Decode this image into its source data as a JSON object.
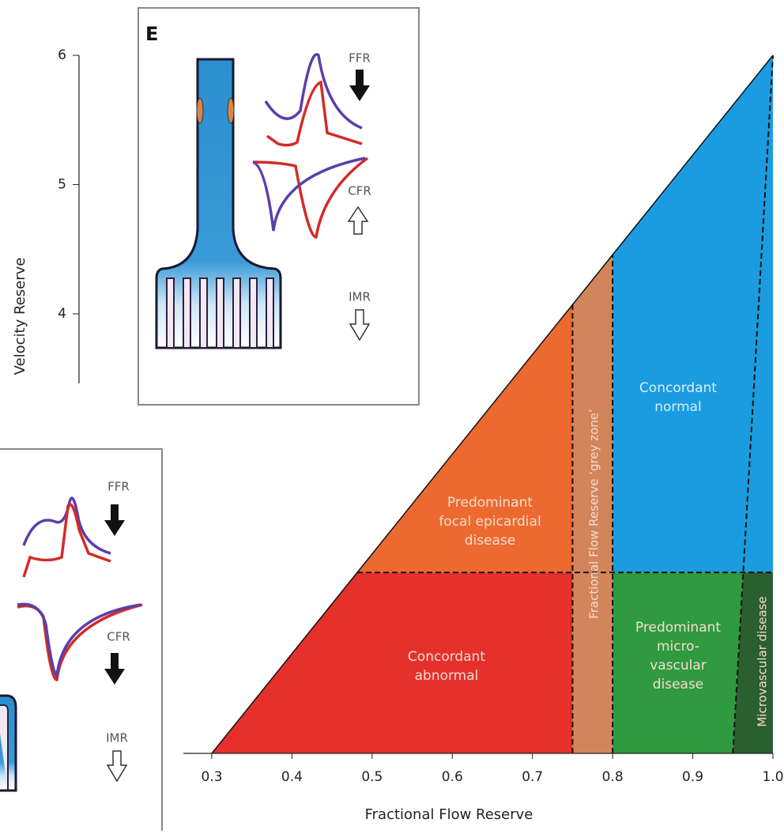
{
  "chart_data": {
    "type": "region",
    "x_label": "Fractional Flow Reserve",
    "y_label": "Velocity Reserve",
    "xlim": [
      0.3,
      1.0
    ],
    "ylim": [
      0.6,
      6
    ],
    "xticks": [
      0.3,
      0.4,
      0.5,
      0.6,
      0.7,
      0.8,
      0.9,
      {
        "value": 1.0,
        "label": "1.0"
      }
    ],
    "yticks": [
      4,
      5,
      6
    ],
    "diagonal": {
      "x": [
        0.3,
        1.0
      ],
      "y": [
        0.6,
        6
      ]
    },
    "microvascular_boundary": {
      "x": [
        0.95,
        1.0
      ],
      "y": [
        0.6,
        6
      ]
    },
    "ffr_thresholds": [
      0.75,
      0.8
    ],
    "cfr_threshold": 2,
    "regions": [
      {
        "label": [
          "Concordant",
          "abnormal"
        ],
        "color": "#e5302b"
      },
      {
        "label": [
          "Predominant",
          "focal epicardial",
          "disease"
        ],
        "color": "#ec6a2f"
      },
      {
        "label": [
          "Fractional Flow Reserve ‘grey zone’"
        ],
        "color": "#d2855a"
      },
      {
        "label": [
          "Concordant",
          "normal"
        ],
        "color": "#1b9ce0"
      },
      {
        "label": [
          "Predominant",
          "micro-",
          "vascular",
          "disease"
        ],
        "color": "#2f9a40"
      },
      {
        "label": [
          "Microvascular disease"
        ],
        "color": "#2b5f2f"
      }
    ]
  },
  "inset_e": {
    "label": "E",
    "indicators": [
      "FFR",
      "CFR",
      "IMR"
    ]
  },
  "inset_left": {
    "indicators": [
      "FFR",
      "CFR",
      "IMR"
    ]
  }
}
